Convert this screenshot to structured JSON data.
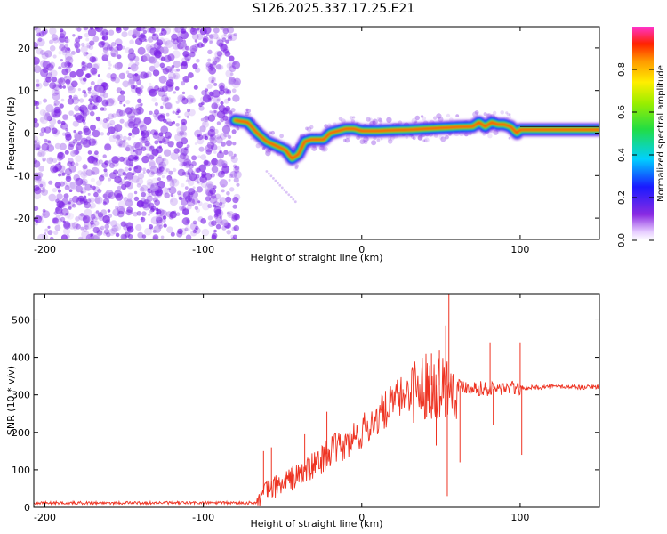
{
  "title": "S126.2025.337.17.25.E21",
  "colors": {
    "snr_line": "#ee3322",
    "noise_purple": "#7a1fe6",
    "axis": "#000000"
  },
  "chart_data": [
    {
      "type": "heatmap",
      "name": "spectrogram",
      "xlabel": "Height of straight line (km)",
      "ylabel": "Frequency (Hz)",
      "xlim": [
        -207,
        150
      ],
      "ylim": [
        -25,
        25
      ],
      "xticks": [
        -200,
        -100,
        0,
        100
      ],
      "xtick_labels": [
        "-200",
        "-100",
        "0",
        "100"
      ],
      "yticks": [
        -20,
        -10,
        0,
        10,
        20
      ],
      "ytick_labels": [
        "-20",
        "-10",
        "0",
        "10",
        "20"
      ],
      "noise_region_x": [
        -207,
        -78
      ],
      "ridge": {
        "x": [
          -80,
          -72,
          -66,
          -60,
          -54,
          -48,
          -44,
          -40,
          -36,
          -32,
          -28,
          -24,
          -20,
          -15,
          -10,
          -5,
          0,
          10,
          20,
          30,
          40,
          50,
          60,
          70,
          74,
          78,
          82,
          86,
          90,
          94,
          98,
          100,
          110,
          120,
          130,
          140,
          150
        ],
        "y": [
          3,
          2.5,
          0,
          -2,
          -3,
          -4,
          -6,
          -5,
          -2,
          -1.5,
          -1.5,
          -1.5,
          0,
          0.5,
          1,
          1,
          0.5,
          0.5,
          0.7,
          0.8,
          1,
          1.2,
          1.4,
          1.5,
          2.5,
          1.5,
          2.5,
          2,
          2,
          1.5,
          0,
          0.8,
          0.8,
          0.8,
          0.8,
          0.8,
          0.8
        ]
      },
      "colorbar": {
        "label": "Normalized spectral amplitude",
        "ticks": [
          0.0,
          0.2,
          0.4,
          0.6,
          0.8
        ],
        "tick_labels": [
          "0.0",
          "0.2",
          "0.4",
          "0.6",
          "0.8"
        ],
        "range": [
          0,
          1
        ]
      }
    },
    {
      "type": "line",
      "name": "snr",
      "xlabel": "Height of straight line (km)",
      "ylabel": "SNR (10 * v/v)",
      "xlim": [
        -207,
        150
      ],
      "ylim": [
        0,
        570
      ],
      "xticks": [
        -200,
        -100,
        0,
        100
      ],
      "xtick_labels": [
        "-200",
        "-100",
        "0",
        "100"
      ],
      "yticks": [
        0,
        100,
        200,
        300,
        400,
        500
      ],
      "ytick_labels": [
        "0",
        "100",
        "200",
        "300",
        "400",
        "500"
      ],
      "trend": {
        "x": [
          -207,
          -150,
          -100,
          -66,
          -60,
          -50,
          -40,
          -30,
          -20,
          -10,
          0,
          10,
          20,
          30,
          40,
          50,
          60,
          70,
          80,
          90,
          100,
          110,
          120,
          130,
          140,
          150
        ],
        "y": [
          12,
          12,
          12,
          12,
          45,
          65,
          85,
          110,
          150,
          165,
          200,
          240,
          280,
          310,
          325,
          325,
          325,
          320,
          315,
          318,
          318,
          320,
          322,
          322,
          320,
          322
        ]
      },
      "spikes": [
        {
          "x": -62,
          "y": 150
        },
        {
          "x": -57,
          "y": 160
        },
        {
          "x": -36,
          "y": 195
        },
        {
          "x": -22,
          "y": 255
        },
        {
          "x": -5,
          "y": 225
        },
        {
          "x": 15,
          "y": 275
        },
        {
          "x": 26,
          "y": 315
        },
        {
          "x": 44,
          "y": 410
        },
        {
          "x": 49,
          "y": 420
        },
        {
          "x": 53,
          "y": 485
        },
        {
          "x": 55,
          "y": 570
        },
        {
          "x": 54,
          "y": 30
        },
        {
          "x": 47,
          "y": 165
        },
        {
          "x": 62,
          "y": 120
        },
        {
          "x": 81,
          "y": 440
        },
        {
          "x": 83,
          "y": 220
        },
        {
          "x": 100,
          "y": 440
        },
        {
          "x": 101,
          "y": 140
        }
      ]
    }
  ]
}
